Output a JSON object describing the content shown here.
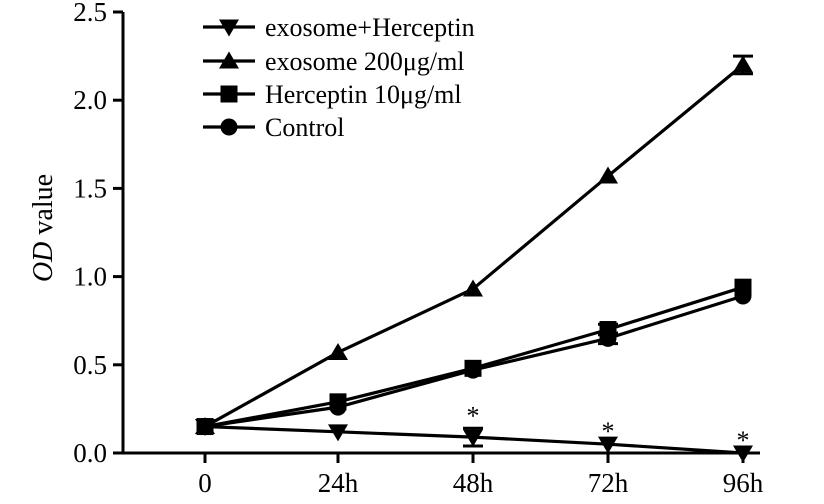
{
  "chart_data": {
    "type": "line",
    "title": "",
    "xlabel": "",
    "ylabel": {
      "italic": "OD",
      "rest": " value"
    },
    "categories": [
      "0",
      "24h",
      "48h",
      "72h",
      "96h"
    ],
    "yticks": [
      "0.0",
      "0.5",
      "1.0",
      "1.5",
      "2.0",
      "2.5"
    ],
    "ylim": [
      0,
      2.5
    ],
    "grid": false,
    "legend_position": "top-left",
    "series": [
      {
        "name": "exosome+Herceptin",
        "marker": "triangle-down",
        "values": [
          0.15,
          0.12,
          0.09,
          0.05,
          0.0
        ],
        "errors": [
          0,
          0,
          0.05,
          0,
          0
        ],
        "significance": [
          "",
          "",
          "*",
          "*",
          "*"
        ]
      },
      {
        "name": "exosome 200μg/ml",
        "marker": "triangle-up",
        "values": [
          0.15,
          0.57,
          0.93,
          1.57,
          2.2
        ],
        "errors": [
          0,
          0,
          0,
          0,
          0.05
        ],
        "significance": [
          "",
          "",
          "",
          "",
          ""
        ]
      },
      {
        "name": "Herceptin 10μg/ml",
        "marker": "square",
        "values": [
          0.15,
          0.29,
          0.48,
          0.7,
          0.94
        ],
        "errors": [
          0,
          0,
          0,
          0.03,
          0
        ],
        "significance": [
          "",
          "",
          "",
          "",
          ""
        ]
      },
      {
        "name": "Control",
        "marker": "circle",
        "values": [
          0.15,
          0.26,
          0.47,
          0.65,
          0.89
        ],
        "errors": [
          0,
          0,
          0,
          0.03,
          0
        ],
        "significance": [
          "",
          "",
          "",
          "",
          ""
        ]
      }
    ],
    "color": "#000000"
  }
}
